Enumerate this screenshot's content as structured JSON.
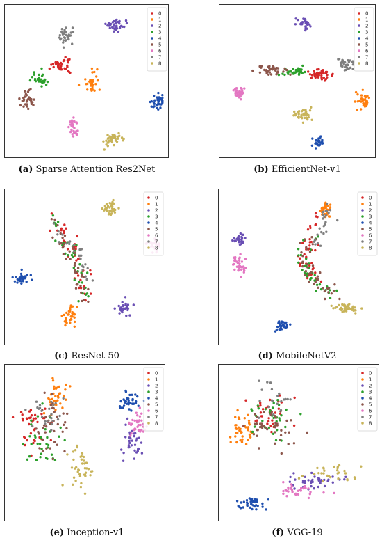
{
  "figure": {
    "colors": {
      "0": "#d62728",
      "1": "#ff7f0e",
      "2": "#6a4fb4",
      "3": "#2ca02c",
      "4": "#1f4faf",
      "5": "#8c564b",
      "6": "#e377c2",
      "7": "#7f7f7f",
      "8": "#c8b45a"
    }
  },
  "chart_data": [
    {
      "type": "scatter",
      "caption_label": "(a)",
      "caption_text": "Sparse Attention Res2Net",
      "legend": [
        "0",
        "1",
        "2",
        "3",
        "4",
        "5",
        "6",
        "7",
        "8"
      ],
      "legend_position": "top-right",
      "clusters": [
        {
          "class": "0",
          "center": [
            0.33,
            0.39
          ],
          "spread": [
            0.05,
            0.05
          ],
          "n": 40
        },
        {
          "class": "1",
          "center": [
            0.53,
            0.51
          ],
          "spread": [
            0.04,
            0.06
          ],
          "n": 35
        },
        {
          "class": "2",
          "center": [
            0.68,
            0.11
          ],
          "spread": [
            0.05,
            0.04
          ],
          "n": 35
        },
        {
          "class": "3",
          "center": [
            0.19,
            0.48
          ],
          "spread": [
            0.05,
            0.04
          ],
          "n": 30
        },
        {
          "class": "4",
          "center": [
            0.96,
            0.64
          ],
          "spread": [
            0.04,
            0.04
          ],
          "n": 35
        },
        {
          "class": "5",
          "center": [
            0.12,
            0.62
          ],
          "spread": [
            0.05,
            0.05
          ],
          "n": 35
        },
        {
          "class": "6",
          "center": [
            0.41,
            0.82
          ],
          "spread": [
            0.03,
            0.05
          ],
          "n": 30
        },
        {
          "class": "7",
          "center": [
            0.36,
            0.17
          ],
          "spread": [
            0.04,
            0.05
          ],
          "n": 35
        },
        {
          "class": "8",
          "center": [
            0.67,
            0.91
          ],
          "spread": [
            0.05,
            0.04
          ],
          "n": 40
        }
      ]
    },
    {
      "type": "scatter",
      "caption_label": "(b)",
      "caption_text": "EfficientNet-v1",
      "legend": [
        "0",
        "1",
        "2",
        "3",
        "4",
        "5",
        "6",
        "7",
        "8"
      ],
      "legend_position": "top-right",
      "clusters": [
        {
          "class": "0",
          "center": [
            0.66,
            0.45
          ],
          "spread": [
            0.07,
            0.03
          ],
          "n": 40
        },
        {
          "class": "1",
          "center": [
            0.95,
            0.63
          ],
          "spread": [
            0.04,
            0.05
          ],
          "n": 35
        },
        {
          "class": "2",
          "center": [
            0.54,
            0.09
          ],
          "spread": [
            0.04,
            0.04
          ],
          "n": 30
        },
        {
          "class": "3",
          "center": [
            0.48,
            0.43
          ],
          "spread": [
            0.07,
            0.02
          ],
          "n": 35
        },
        {
          "class": "4",
          "center": [
            0.64,
            0.93
          ],
          "spread": [
            0.04,
            0.03
          ],
          "n": 30
        },
        {
          "class": "5",
          "center": [
            0.32,
            0.42
          ],
          "spread": [
            0.07,
            0.03
          ],
          "n": 40
        },
        {
          "class": "6",
          "center": [
            0.09,
            0.58
          ],
          "spread": [
            0.04,
            0.04
          ],
          "n": 30
        },
        {
          "class": "7",
          "center": [
            0.82,
            0.37
          ],
          "spread": [
            0.05,
            0.04
          ],
          "n": 35
        },
        {
          "class": "8",
          "center": [
            0.53,
            0.73
          ],
          "spread": [
            0.05,
            0.04
          ],
          "n": 40
        }
      ]
    },
    {
      "type": "scatter",
      "caption_label": "(c)",
      "caption_text": "ResNet-50",
      "legend": [
        "0",
        "1",
        "2",
        "3",
        "4",
        "5",
        "6",
        "7",
        "8"
      ],
      "legend_position": "top-right",
      "clusters": [
        {
          "class": "0",
          "band": [
            [
              0.25,
              0.15
            ],
            [
              0.42,
              0.35
            ],
            [
              0.48,
              0.55
            ],
            [
              0.5,
              0.72
            ]
          ],
          "jitter": 0.05,
          "n": 40
        },
        {
          "class": "1",
          "center": [
            0.4,
            0.82
          ],
          "spread": [
            0.04,
            0.07
          ],
          "n": 35
        },
        {
          "class": "2",
          "center": [
            0.76,
            0.78
          ],
          "spread": [
            0.04,
            0.04
          ],
          "n": 30
        },
        {
          "class": "3",
          "band": [
            [
              0.25,
              0.15
            ],
            [
              0.4,
              0.35
            ],
            [
              0.46,
              0.55
            ],
            [
              0.5,
              0.72
            ]
          ],
          "jitter": 0.05,
          "n": 35
        },
        {
          "class": "4",
          "center": [
            0.08,
            0.57
          ],
          "spread": [
            0.04,
            0.04
          ],
          "n": 30
        },
        {
          "class": "5",
          "band": [
            [
              0.25,
              0.15
            ],
            [
              0.38,
              0.35
            ],
            [
              0.45,
              0.55
            ],
            [
              0.48,
              0.72
            ]
          ],
          "jitter": 0.05,
          "n": 40
        },
        {
          "class": "6",
          "center": [
            0.96,
            0.34
          ],
          "spread": [
            0.04,
            0.03
          ],
          "n": 30
        },
        {
          "class": "7",
          "band": [
            [
              0.3,
              0.2
            ],
            [
              0.44,
              0.4
            ],
            [
              0.52,
              0.6
            ]
          ],
          "jitter": 0.05,
          "n": 25
        },
        {
          "class": "8",
          "center": [
            0.67,
            0.09
          ],
          "spread": [
            0.05,
            0.04
          ],
          "n": 35
        }
      ]
    },
    {
      "type": "scatter",
      "caption_label": "(d)",
      "caption_text": "MobileNetV2",
      "legend": [
        "0",
        "1",
        "2",
        "3",
        "4",
        "5",
        "6",
        "7",
        "8"
      ],
      "legend_position": "top-right",
      "clusters": [
        {
          "class": "0",
          "band": [
            [
              0.62,
              0.15
            ],
            [
              0.58,
              0.3
            ],
            [
              0.52,
              0.45
            ],
            [
              0.6,
              0.58
            ]
          ],
          "jitter": 0.05,
          "n": 40
        },
        {
          "class": "1",
          "center": [
            0.68,
            0.1
          ],
          "spread": [
            0.03,
            0.05
          ],
          "n": 30
        },
        {
          "class": "2",
          "center": [
            0.1,
            0.3
          ],
          "spread": [
            0.04,
            0.04
          ],
          "n": 30
        },
        {
          "class": "3",
          "band": [
            [
              0.58,
              0.3
            ],
            [
              0.52,
              0.45
            ],
            [
              0.6,
              0.58
            ],
            [
              0.72,
              0.7
            ]
          ],
          "jitter": 0.05,
          "n": 35
        },
        {
          "class": "4",
          "center": [
            0.38,
            0.9
          ],
          "spread": [
            0.04,
            0.04
          ],
          "n": 30
        },
        {
          "class": "5",
          "band": [
            [
              0.58,
              0.3
            ],
            [
              0.52,
              0.45
            ],
            [
              0.62,
              0.6
            ],
            [
              0.72,
              0.68
            ]
          ],
          "jitter": 0.05,
          "n": 40
        },
        {
          "class": "6",
          "center": [
            0.1,
            0.48
          ],
          "spread": [
            0.05,
            0.05
          ],
          "n": 35
        },
        {
          "class": "7",
          "band": [
            [
              0.7,
              0.08
            ],
            [
              0.66,
              0.22
            ],
            [
              0.6,
              0.35
            ]
          ],
          "jitter": 0.04,
          "n": 25
        },
        {
          "class": "8",
          "center": [
            0.82,
            0.78
          ],
          "spread": [
            0.08,
            0.03
          ],
          "n": 40
        }
      ]
    },
    {
      "type": "scatter",
      "caption_label": "(e)",
      "caption_text": "Inception-v1",
      "legend": [
        "0",
        "1",
        "2",
        "3",
        "4",
        "5",
        "6",
        "7",
        "8"
      ],
      "legend_position": "top-right",
      "clusters": [
        {
          "class": "0",
          "center": [
            0.15,
            0.4
          ],
          "spread": [
            0.1,
            0.15
          ],
          "n": 40
        },
        {
          "class": "1",
          "center": [
            0.3,
            0.18
          ],
          "spread": [
            0.06,
            0.1
          ],
          "n": 40
        },
        {
          "class": "2",
          "center": [
            0.82,
            0.48
          ],
          "spread": [
            0.05,
            0.1
          ],
          "n": 35
        },
        {
          "class": "3",
          "center": [
            0.2,
            0.48
          ],
          "spread": [
            0.1,
            0.15
          ],
          "n": 35
        },
        {
          "class": "4",
          "center": [
            0.79,
            0.22
          ],
          "spread": [
            0.05,
            0.05
          ],
          "n": 35
        },
        {
          "class": "5",
          "center": [
            0.28,
            0.38
          ],
          "spread": [
            0.1,
            0.18
          ],
          "n": 40
        },
        {
          "class": "6",
          "center": [
            0.85,
            0.38
          ],
          "spread": [
            0.05,
            0.08
          ],
          "n": 35
        },
        {
          "class": "7",
          "center": [
            0.25,
            0.3
          ],
          "spread": [
            0.1,
            0.1
          ],
          "n": 25
        },
        {
          "class": "8",
          "center": [
            0.46,
            0.68
          ],
          "spread": [
            0.06,
            0.12
          ],
          "n": 40
        }
      ]
    },
    {
      "type": "scatter",
      "caption_label": "(f)",
      "caption_text": "VGG-19",
      "legend": [
        "0",
        "1",
        "2",
        "3",
        "4",
        "5",
        "6",
        "7",
        "8"
      ],
      "legend_position": "top-right",
      "clusters": [
        {
          "class": "0",
          "center": [
            0.3,
            0.3
          ],
          "spread": [
            0.12,
            0.12
          ],
          "n": 35
        },
        {
          "class": "1",
          "center": [
            0.12,
            0.4
          ],
          "spread": [
            0.06,
            0.12
          ],
          "n": 40
        },
        {
          "class": "2",
          "center": [
            0.62,
            0.76
          ],
          "spread": [
            0.15,
            0.05
          ],
          "n": 40
        },
        {
          "class": "3",
          "center": [
            0.28,
            0.34
          ],
          "spread": [
            0.12,
            0.12
          ],
          "n": 35
        },
        {
          "class": "4",
          "center": [
            0.18,
            0.91
          ],
          "spread": [
            0.08,
            0.04
          ],
          "n": 40
        },
        {
          "class": "5",
          "center": [
            0.3,
            0.4
          ],
          "spread": [
            0.14,
            0.12
          ],
          "n": 45
        },
        {
          "class": "6",
          "center": [
            0.5,
            0.82
          ],
          "spread": [
            0.15,
            0.04
          ],
          "n": 35
        },
        {
          "class": "7",
          "center": [
            0.35,
            0.2
          ],
          "spread": [
            0.1,
            0.1
          ],
          "n": 20
        },
        {
          "class": "8",
          "center": [
            0.7,
            0.7
          ],
          "spread": [
            0.18,
            0.05
          ],
          "n": 30
        }
      ]
    }
  ]
}
